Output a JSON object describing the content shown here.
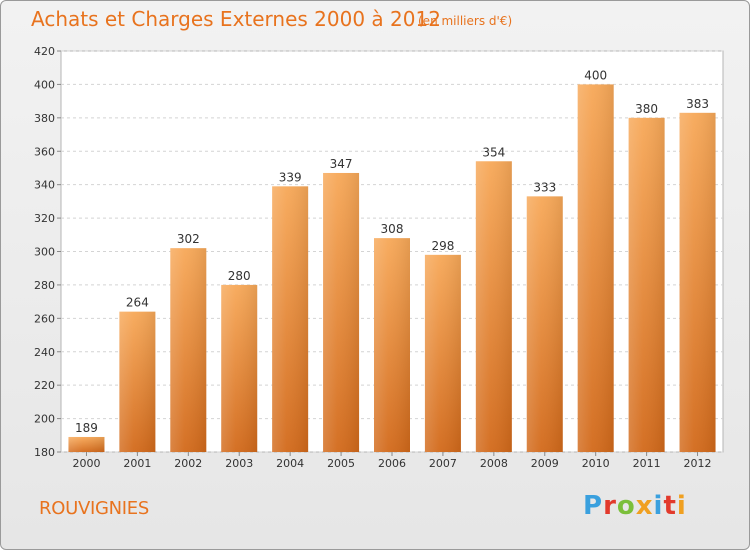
{
  "header": {
    "title": "Achats et Charges Externes 2000 à 2012",
    "subtitle": "(en milliers d'€)"
  },
  "footer": {
    "commune": "ROUVIGNIES",
    "logo_text": "Proxiti"
  },
  "colors": {
    "accent": "#e8731e",
    "bar_light": "#f6a654",
    "bar_dark": "#d06a18",
    "logo_letters": [
      "#3aa0de",
      "#e23a2c",
      "#7bbf3a",
      "#f0a020",
      "#3aa0de",
      "#e23a2c",
      "#f0a020"
    ]
  },
  "chart_data": {
    "type": "bar",
    "categories": [
      "2000",
      "2001",
      "2002",
      "2003",
      "2004",
      "2005",
      "2006",
      "2007",
      "2008",
      "2009",
      "2010",
      "2011",
      "2012"
    ],
    "values": [
      189,
      264,
      302,
      280,
      339,
      347,
      308,
      298,
      354,
      333,
      400,
      380,
      383
    ],
    "data_labels": [
      "189",
      "264",
      "302",
      "280",
      "339",
      "347",
      "308",
      "298",
      "354",
      "333",
      "400",
      "380",
      "383"
    ],
    "title": "Achats et Charges Externes 2000 à 2012",
    "xlabel": "",
    "ylabel": "",
    "ylim": [
      180,
      420
    ],
    "yticks": [
      180,
      200,
      220,
      240,
      260,
      280,
      300,
      320,
      340,
      360,
      380,
      400,
      420
    ],
    "grid": true
  }
}
